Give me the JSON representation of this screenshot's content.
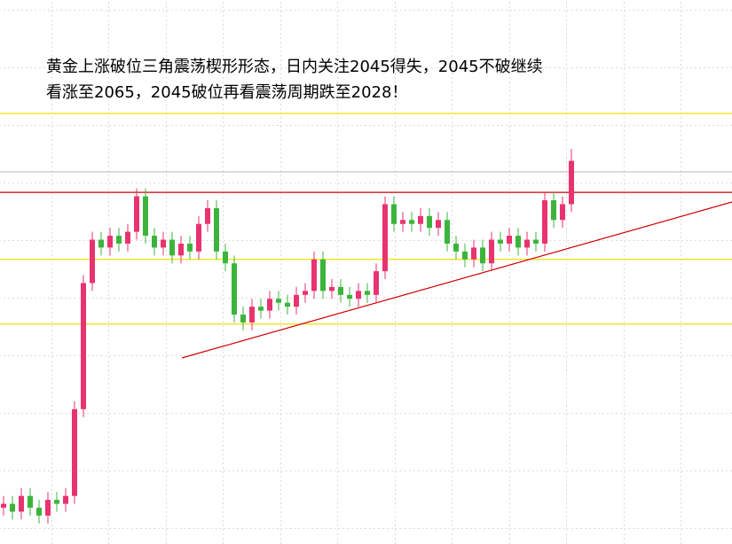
{
  "chart_data": {
    "type": "candlestick",
    "annotation": [
      "黄金上涨破位三角震荡楔形形态，日内关注2045得失，2045不破继续",
      "看涨至2065，2045破位再看震荡周期跌至2028！"
    ],
    "ylim": [
      1955.8,
      2093.8
    ],
    "grid": true,
    "up_color": "#e8336e",
    "down_color": "#3cb43c",
    "levels": [
      {
        "value": 2065,
        "color": "#f0e000"
      },
      {
        "value": 2050.2,
        "color": "#c8c8c8"
      },
      {
        "value": 2045,
        "color": "#d00000"
      },
      {
        "value": 2028,
        "color": "#f0e000"
      },
      {
        "value": 2011.6,
        "color": "#f0e000"
      }
    ],
    "open": [
      1965,
      1966,
      1964,
      1968,
      1965,
      1963,
      1967,
      1966,
      1968,
      1990,
      2022,
      2033,
      2031,
      2034,
      2032,
      2035,
      2044,
      2034,
      2031,
      2033,
      2029,
      2032,
      2030,
      2037,
      2041,
      2030,
      2027,
      2014,
      2012,
      2016,
      2015,
      2018,
      2017,
      2016,
      2019,
      2020,
      2028,
      2020,
      2021,
      2019,
      2018,
      2020,
      2019,
      2025,
      2042,
      2037,
      2038,
      2037,
      2039,
      2036,
      2038,
      2032,
      2030,
      2028,
      2031,
      2027,
      2033,
      2032,
      2034,
      2031,
      2033,
      2032,
      2043,
      2038,
      2042
    ],
    "close": [
      1966,
      1964,
      1968,
      1965,
      1963,
      1967,
      1966,
      1968,
      1990,
      2022,
      2033,
      2031,
      2034,
      2032,
      2035,
      2044,
      2034,
      2031,
      2033,
      2029,
      2032,
      2030,
      2037,
      2041,
      2030,
      2027,
      2014,
      2012,
      2016,
      2015,
      2018,
      2017,
      2016,
      2019,
      2020,
      2028,
      2020,
      2021,
      2019,
      2018,
      2020,
      2019,
      2025,
      2042,
      2037,
      2038,
      2037,
      2039,
      2036,
      2038,
      2032,
      2030,
      2028,
      2031,
      2027,
      2033,
      2032,
      2034,
      2031,
      2033,
      2032,
      2043,
      2038,
      2042,
      2053
    ],
    "high": [
      1968,
      1968,
      1970,
      1970,
      1967,
      1969,
      1969,
      1970,
      1992,
      2024,
      2035,
      2035,
      2036,
      2036,
      2037,
      2046,
      2046,
      2036,
      2035,
      2035,
      2034,
      2034,
      2039,
      2043,
      2043,
      2032,
      2029,
      2016,
      2018,
      2018,
      2020,
      2020,
      2019,
      2021,
      2022,
      2030,
      2030,
      2023,
      2023,
      2021,
      2022,
      2022,
      2027,
      2044,
      2044,
      2040,
      2040,
      2041,
      2041,
      2040,
      2040,
      2034,
      2032,
      2033,
      2033,
      2035,
      2035,
      2036,
      2036,
      2035,
      2035,
      2045,
      2045,
      2044,
      2056
    ],
    "low": [
      1963,
      1962,
      1962,
      1963,
      1961,
      1961,
      1964,
      1964,
      1966,
      1988,
      2020,
      2029,
      2029,
      2030,
      2030,
      2033,
      2032,
      2029,
      2029,
      2027,
      2027,
      2028,
      2028,
      2035,
      2028,
      2025,
      2012,
      2010,
      2010,
      2013,
      2013,
      2015,
      2014,
      2014,
      2017,
      2018,
      2018,
      2018,
      2017,
      2016,
      2016,
      2017,
      2017,
      2023,
      2035,
      2035,
      2035,
      2035,
      2034,
      2034,
      2030,
      2028,
      2026,
      2026,
      2025,
      2025,
      2030,
      2030,
      2029,
      2029,
      2030,
      2030,
      2036,
      2036,
      2040
    ]
  }
}
